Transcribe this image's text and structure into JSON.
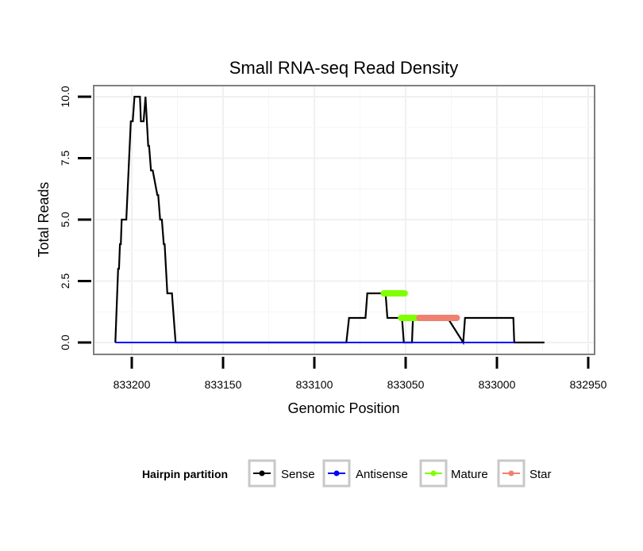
{
  "chart_data": {
    "type": "line",
    "title": "Small RNA-seq Read Density",
    "xlabel": "Genomic Position",
    "ylabel": "Total Reads",
    "x_reversed": true,
    "xlim": [
      833210,
      832940
    ],
    "ylim": [
      0,
      10
    ],
    "x_ticks": [
      833200,
      833150,
      833100,
      833050,
      833000,
      832950
    ],
    "x_tick_labels": [
      "833200",
      "833150",
      "833100",
      "833050",
      "833000",
      "832950"
    ],
    "y_ticks": [
      0,
      2.5,
      5,
      7.5,
      10
    ],
    "y_tick_labels": [
      "0.0",
      "2.5",
      "5.0",
      "7.5",
      "10.0"
    ],
    "grid": true,
    "legend": {
      "title": "Hairpin partition",
      "placement": "bottom",
      "entries": [
        {
          "label": "Sense",
          "color": "#000000"
        },
        {
          "label": "Antisense",
          "color": "#0000FF"
        },
        {
          "label": "Mature",
          "color": "#7FFF00"
        },
        {
          "label": "Star",
          "color": "#F08070"
        }
      ]
    },
    "series": [
      {
        "name": "Sense",
        "color": "#000000",
        "points": [
          [
            833209,
            0
          ],
          [
            833207.5,
            3
          ],
          [
            833207,
            3
          ],
          [
            833206.5,
            4
          ],
          [
            833206,
            4
          ],
          [
            833205.5,
            5
          ],
          [
            833203,
            5
          ],
          [
            833200.5,
            9
          ],
          [
            833199.5,
            9
          ],
          [
            833198.5,
            10
          ],
          [
            833195.5,
            10
          ],
          [
            833195,
            9
          ],
          [
            833193.5,
            9
          ],
          [
            833192.5,
            10
          ],
          [
            833191,
            8
          ],
          [
            833190.5,
            8
          ],
          [
            833189.5,
            7
          ],
          [
            833188.5,
            7
          ],
          [
            833186,
            6
          ],
          [
            833185.5,
            6
          ],
          [
            833184.5,
            5
          ],
          [
            833183.5,
            5
          ],
          [
            833182.5,
            4
          ],
          [
            833182,
            4
          ],
          [
            833180.5,
            2
          ],
          [
            833178,
            2
          ],
          [
            833177,
            1
          ],
          [
            833176,
            0
          ],
          [
            833082.5,
            0
          ],
          [
            833081,
            1
          ],
          [
            833072,
            1
          ],
          [
            833071,
            2
          ],
          [
            833061,
            2
          ],
          [
            833060,
            1
          ],
          [
            833052,
            1
          ],
          [
            833051,
            0
          ],
          [
            833046.5,
            0
          ],
          [
            833046,
            1
          ],
          [
            833027.5,
            1
          ],
          [
            833027,
            1
          ],
          [
            833018.5,
            0
          ],
          [
            833017.5,
            1
          ],
          [
            832991.5,
            1
          ],
          [
            832991,
            1
          ],
          [
            832990.5,
            0
          ],
          [
            832974,
            0
          ]
        ]
      },
      {
        "name": "Antisense",
        "color": "#0000FF",
        "points": [
          [
            833209,
            0
          ],
          [
            832990.5,
            0
          ]
        ]
      },
      {
        "name": "Mature",
        "color": "#7FFF00",
        "segments": [
          {
            "x": [
              833062,
              833050.5
            ],
            "y": 2
          },
          {
            "x": [
              833052.5,
              833043
            ],
            "y": 1
          }
        ]
      },
      {
        "name": "Star",
        "color": "#F08070",
        "segments": [
          {
            "x": [
              833042.5,
              833022
            ],
            "y": 1
          }
        ]
      }
    ]
  }
}
